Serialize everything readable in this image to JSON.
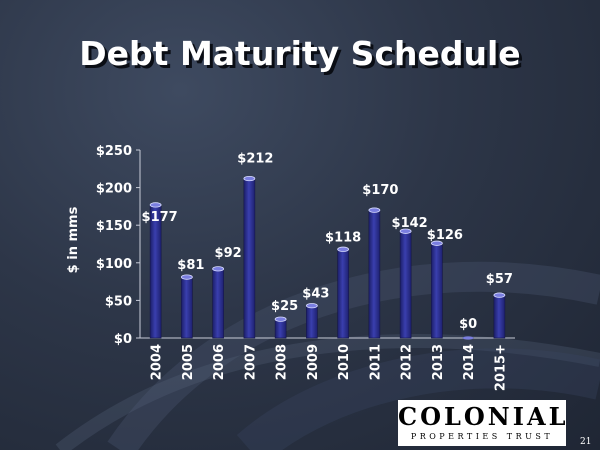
{
  "slide": {
    "title": "Debt Maturity Schedule",
    "page_number": "21",
    "logo": {
      "main_text": "COLONIAL",
      "sub_text": "PROPERTIES TRUST"
    }
  },
  "colors": {
    "background": "#2d3648",
    "bar": "#2c2f8e",
    "bar_highlight": "#5a5ec8",
    "text": "#ffffff"
  },
  "chart_data": {
    "type": "bar",
    "title": "Debt Maturity Schedule",
    "xlabel": "",
    "ylabel": "$ in mms",
    "categories": [
      "2004",
      "2005",
      "2006",
      "2007",
      "2008",
      "2009",
      "2010",
      "2011",
      "2012",
      "2013",
      "2014",
      "2015+"
    ],
    "values": [
      177,
      81,
      92,
      212,
      25,
      43,
      118,
      170,
      142,
      126,
      0,
      57
    ],
    "data_labels": [
      "$177",
      "$81",
      "$92",
      "$212",
      "$25",
      "$43",
      "$118",
      "$170",
      "$142",
      "$126",
      "$0",
      "$57"
    ],
    "ylim": [
      0,
      250
    ],
    "yticks": [
      0,
      50,
      100,
      150,
      200,
      250
    ],
    "ytick_labels": [
      "$0",
      "$50",
      "$100",
      "$150",
      "$200",
      "$250"
    ],
    "grid": false,
    "legend": "none"
  }
}
